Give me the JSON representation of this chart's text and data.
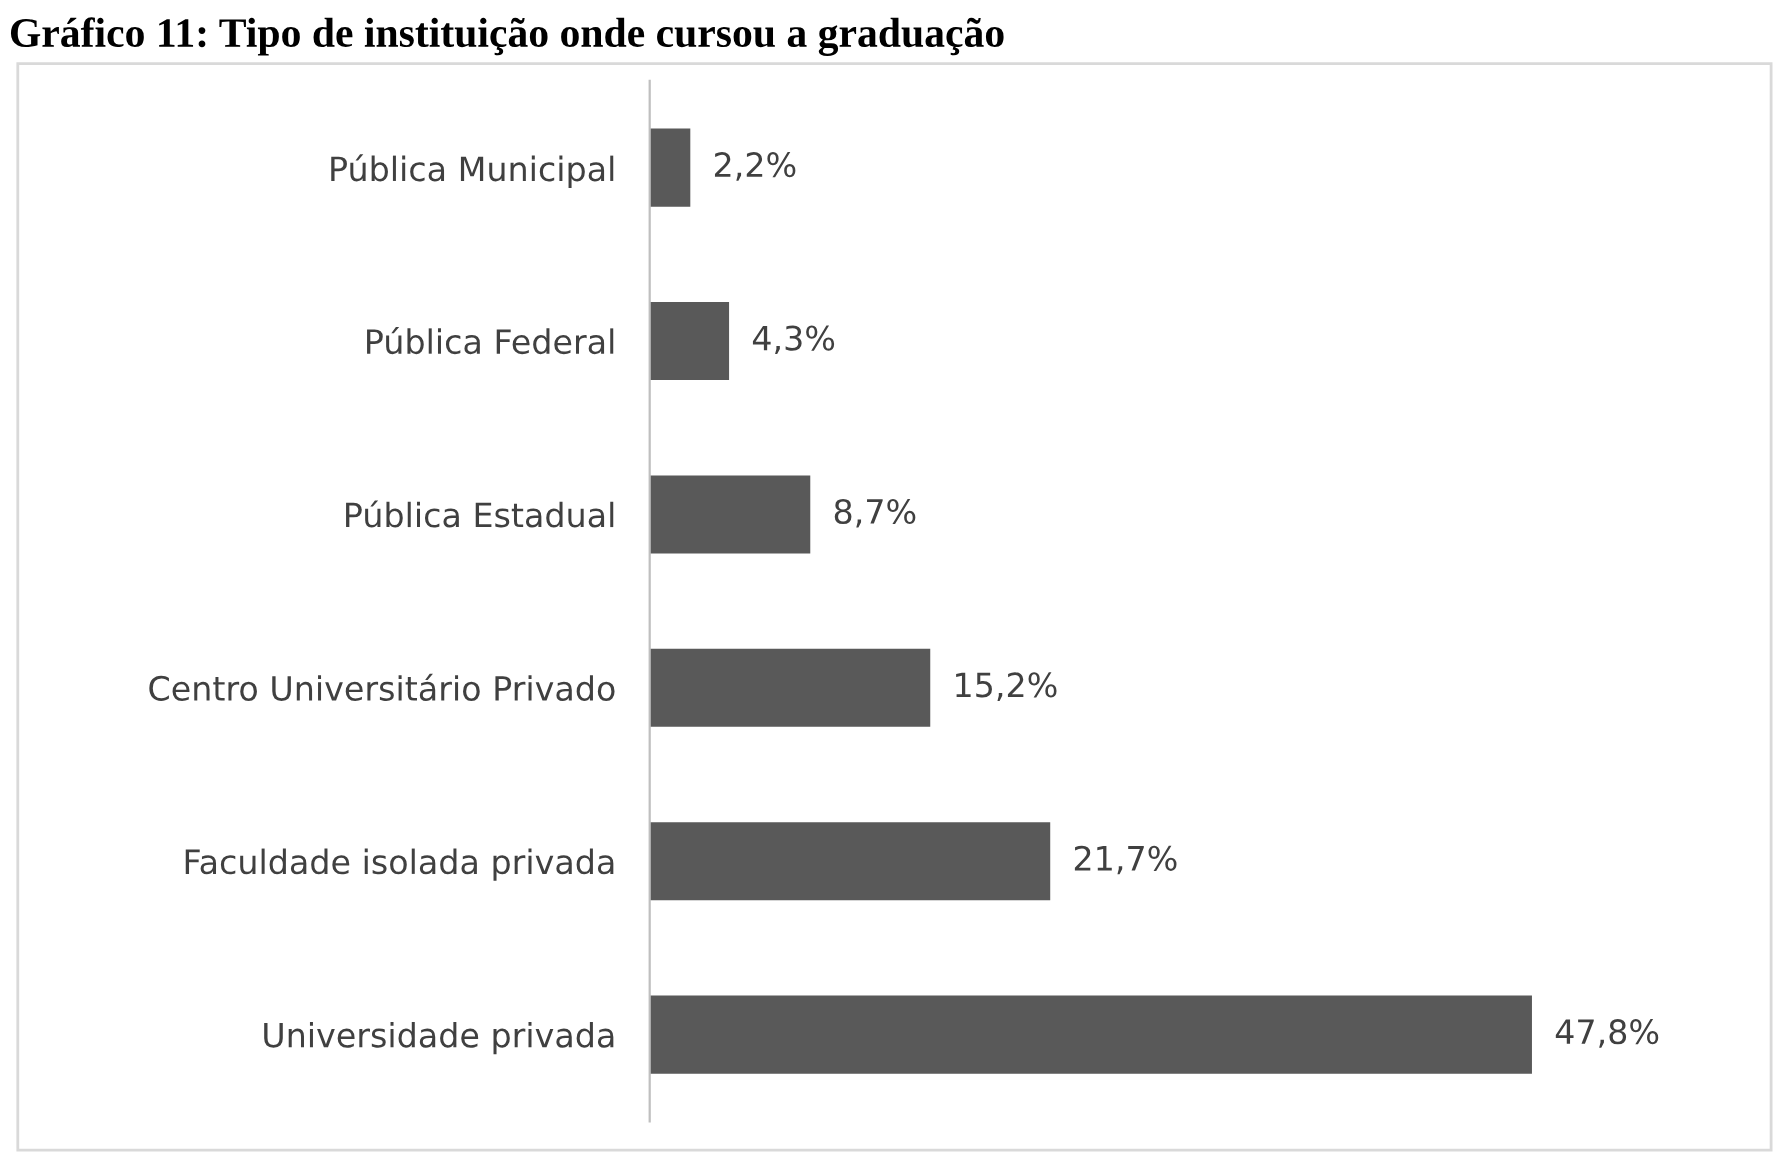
{
  "chart_data": {
    "type": "bar",
    "orientation": "horizontal",
    "title": "Gráfico 11: Tipo de instituição onde cursou a graduação",
    "categories": [
      "Pública Municipal",
      "Pública Federal",
      "Pública Estadual",
      "Centro Universitário Privado",
      "Faculdade isolada privada",
      "Universidade privada"
    ],
    "values": [
      2.2,
      4.3,
      8.7,
      15.2,
      21.7,
      47.8
    ],
    "value_labels": [
      "2,2%",
      "4,3%",
      "8,7%",
      "15,2%",
      "21,7%",
      "47,8%"
    ],
    "color": "#595959",
    "grid": false,
    "legend": false
  }
}
